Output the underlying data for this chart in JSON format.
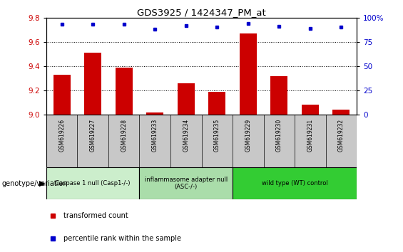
{
  "title": "GDS3925 / 1424347_PM_at",
  "samples": [
    "GSM619226",
    "GSM619227",
    "GSM619228",
    "GSM619233",
    "GSM619234",
    "GSM619235",
    "GSM619229",
    "GSM619230",
    "GSM619231",
    "GSM619232"
  ],
  "bar_values": [
    9.33,
    9.51,
    9.39,
    9.02,
    9.26,
    9.19,
    9.67,
    9.32,
    9.08,
    9.04
  ],
  "dot_values": [
    93,
    93,
    93,
    88,
    92,
    90,
    94,
    91,
    89,
    90
  ],
  "bar_color": "#cc0000",
  "dot_color": "#0000cc",
  "ylim_left": [
    9.0,
    9.8
  ],
  "ylim_right": [
    0,
    100
  ],
  "yticks_left": [
    9.0,
    9.2,
    9.4,
    9.6,
    9.8
  ],
  "yticks_right": [
    0,
    25,
    50,
    75,
    100
  ],
  "ytick_labels_right": [
    "0",
    "25",
    "50",
    "75",
    "100%"
  ],
  "groups": [
    {
      "label": "Caspase 1 null (Casp1-/-)",
      "indices": [
        0,
        1,
        2
      ],
      "color": "#cceecc"
    },
    {
      "label": "inflammasome adapter null\n(ASC-/-)",
      "indices": [
        3,
        4,
        5
      ],
      "color": "#aaddaa"
    },
    {
      "label": "wild type (WT) control",
      "indices": [
        6,
        7,
        8,
        9
      ],
      "color": "#33cc33"
    }
  ],
  "xlabel_genotype": "genotype/variation",
  "legend_bar": "transformed count",
  "legend_dot": "percentile rank within the sample",
  "bar_width": 0.55,
  "tick_area_color": "#c8c8c8",
  "axis_label_color_left": "#cc0000",
  "axis_label_color_right": "#0000cc",
  "fig_width": 5.65,
  "fig_height": 3.54,
  "dpi": 100
}
